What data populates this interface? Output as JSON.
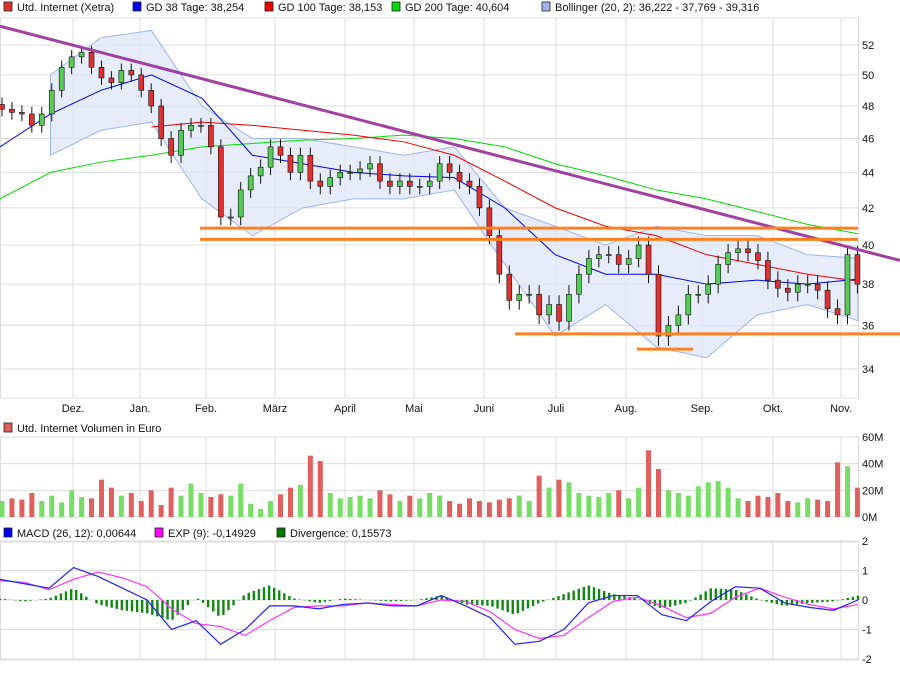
{
  "chart_data": [
    {
      "type": "candlestick",
      "scale": "log",
      "legend": [
        {
          "label": "Utd. Internet (Xetra)",
          "color": "#e03030"
        },
        {
          "label": "GD 38 Tage: 38,254",
          "color": "#0000ee"
        },
        {
          "label": "GD 100 Tage: 38,153",
          "color": "#ee0000"
        },
        {
          "label": "GD 200 Tage: 40,604",
          "color": "#00dd00"
        },
        {
          "label": "Bollinger (20, 2): 36,222 - 37,769 - 39,316",
          "color": "#9fb4e8"
        }
      ],
      "y_ticks": [
        34,
        36,
        38,
        40,
        42,
        44,
        46,
        48,
        50,
        52
      ],
      "ylim": [
        33,
        53.5
      ],
      "months": [
        "Dez.",
        "Jan.",
        "Feb.",
        "März",
        "April",
        "Mai",
        "Juni",
        "Juli",
        "Aug.",
        "Sep.",
        "Okt.",
        "Nov."
      ],
      "close": [
        47.8,
        47.6,
        47.5,
        46.8,
        47.5,
        49,
        50.5,
        51.2,
        51.5,
        50.5,
        49.8,
        49.5,
        50.3,
        50,
        49,
        48,
        46,
        45,
        46.5,
        46.8,
        46.8,
        45.5,
        41.5,
        41.5,
        43,
        43.8,
        44.3,
        45.5,
        45,
        44,
        45,
        43.5,
        43.2,
        43.7,
        44,
        44,
        44.2,
        44.5,
        43.5,
        43.2,
        43.5,
        43.2,
        43.2,
        43.5,
        44.5,
        44,
        43.5,
        43.2,
        42,
        40.5,
        38.5,
        37.2,
        37.5,
        37.5,
        36.5,
        37,
        36.2,
        37.5,
        38.5,
        39.3,
        39.5,
        39.5,
        39,
        39.3,
        40,
        38.5,
        35.5,
        36,
        36.5,
        37.5,
        37.5,
        38,
        39,
        39.6,
        39.8,
        39.6,
        39.2,
        38.2,
        37.8,
        37.6,
        38,
        38,
        37.7,
        36.8,
        36.5,
        39.5,
        38
      ],
      "gd38": [
        45.5,
        47.5,
        49,
        50,
        48.5,
        45,
        44.5,
        44,
        43.8,
        43.7,
        42,
        39.5,
        38.5,
        38.5,
        38,
        38.2,
        38,
        38.25
      ],
      "gd100": [
        null,
        null,
        null,
        46.7,
        47,
        46.8,
        46.5,
        46.2,
        45.8,
        45,
        43.5,
        42,
        41,
        40.5,
        39.5,
        39,
        38.5,
        38.15
      ],
      "gd200": [
        42.5,
        44,
        44.6,
        45,
        45.5,
        45.7,
        45.9,
        46,
        46.2,
        46,
        45.5,
        44.5,
        43.8,
        43,
        42.5,
        41.8,
        41.1,
        40.6
      ],
      "bollinger_upper": [
        null,
        50,
        52.5,
        53,
        48,
        46,
        46,
        45.5,
        45,
        45.5,
        42,
        41,
        40,
        41,
        40.5,
        40.5,
        39.5,
        39.316
      ],
      "bollinger_lower": [
        null,
        45,
        46.5,
        47,
        42.5,
        40.5,
        42,
        42.5,
        42.5,
        43,
        39,
        35.5,
        37,
        35,
        34.5,
        36.5,
        37,
        36.222
      ],
      "trendline": [
        53.3,
        39.2
      ],
      "support_resistance_levels": [
        40.9,
        40.3,
        35.6,
        34.9
      ],
      "colors": {
        "trendline": "#a040a0",
        "levels": "#ff8020",
        "up": "#55cc55",
        "down": "#e03030",
        "band": "#dde6f8"
      }
    },
    {
      "type": "bar",
      "legend": [
        {
          "label": "Utd. Internet Volumen in Euro",
          "color": "#e06060"
        }
      ],
      "y_ticks": [
        "0M",
        "20M",
        "40M",
        "60M"
      ],
      "ylim": [
        0,
        60
      ],
      "unit": "M",
      "values": [
        12,
        14,
        13,
        18,
        12,
        16,
        11,
        20,
        15,
        14,
        28,
        22,
        16,
        18,
        12,
        20,
        9,
        22,
        16,
        25,
        18,
        15,
        17,
        16,
        25,
        10,
        6,
        12,
        17,
        22,
        24,
        46,
        42,
        18,
        14,
        15,
        16,
        14,
        20,
        17,
        12,
        16,
        14,
        18,
        16,
        12,
        10,
        14,
        12,
        11,
        13,
        14,
        16,
        12,
        31,
        22,
        28,
        26,
        18,
        16,
        15,
        18,
        20,
        14,
        22,
        50,
        36,
        20,
        18,
        16,
        23,
        26,
        27,
        22,
        14,
        12,
        16,
        15,
        18,
        12,
        11,
        14,
        13,
        12,
        41,
        38,
        22
      ]
    },
    {
      "type": "line",
      "legend": [
        {
          "label": "MACD (26, 12): 0,00644",
          "color": "#0000ee"
        },
        {
          "label": "EXP (9): -0,14929",
          "color": "#ff00ff"
        },
        {
          "label": "Divergence: 0,15573",
          "color": "#007700"
        }
      ],
      "y_ticks": [
        -2,
        -1,
        0,
        1,
        2
      ],
      "ylim": [
        -2,
        2
      ],
      "macd": [
        0.7,
        0.55,
        0.4,
        1.1,
        0.8,
        0.4,
        0.0,
        -1.0,
        -0.7,
        -1.5,
        -1.0,
        -0.2,
        -0.2,
        -0.3,
        -0.15,
        -0.1,
        -0.2,
        -0.2,
        0.15,
        -0.2,
        -0.6,
        -1.5,
        -1.4,
        -1.0,
        -0.1,
        0.15,
        0.15,
        -0.5,
        -0.7,
        -0.05,
        0.45,
        0.4,
        -0.1,
        -0.25,
        -0.35,
        0.0
      ],
      "signal": [
        0.65,
        0.6,
        0.35,
        0.7,
        0.95,
        0.75,
        0.45,
        -0.3,
        -0.8,
        -0.9,
        -1.2,
        -0.7,
        -0.25,
        -0.2,
        -0.2,
        -0.1,
        -0.15,
        -0.2,
        0.0,
        -0.05,
        -0.4,
        -1.0,
        -1.3,
        -1.2,
        -0.6,
        -0.05,
        0.1,
        -0.2,
        -0.6,
        -0.45,
        0.1,
        0.4,
        0.1,
        -0.15,
        -0.3,
        -0.15
      ]
    }
  ]
}
